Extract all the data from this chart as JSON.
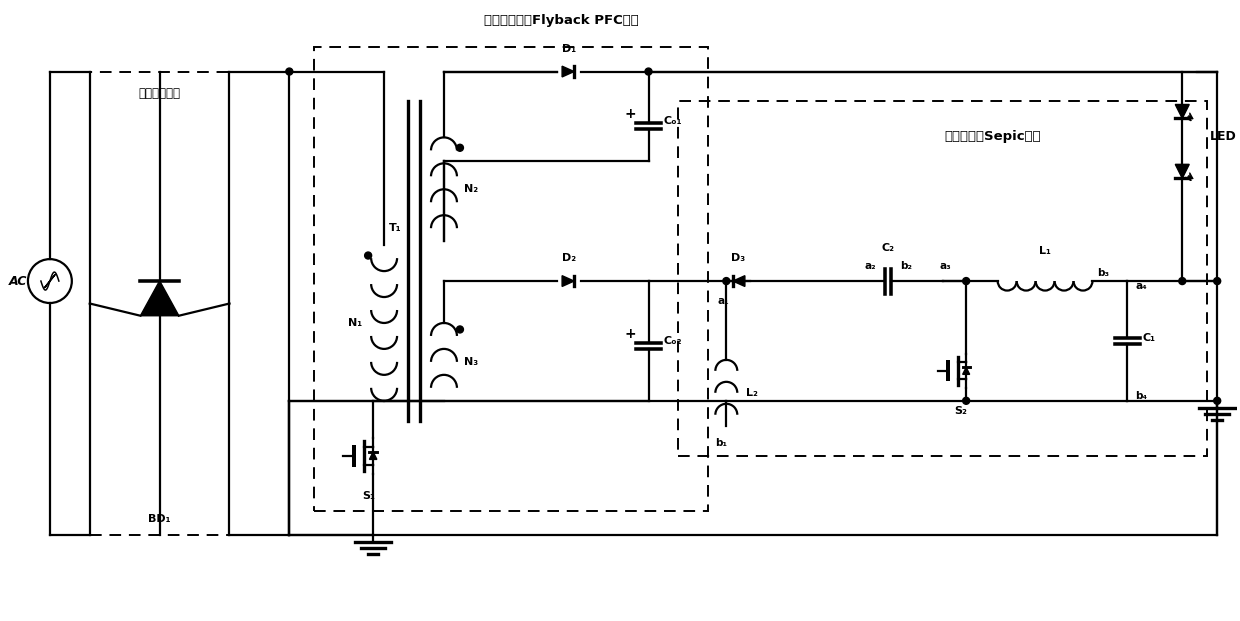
{
  "title_flyback": "带辅助绕组的Flyback PFC电路",
  "title_sepic": "辅助去纹波Sepic电路",
  "title_rectifier": "不控整流电路",
  "label_AC": "AC",
  "label_BD1": "BD₁",
  "label_T1": "T₁",
  "label_N1": "N₁",
  "label_N2": "N₂",
  "label_N3": "N₃",
  "label_D1": "D₁",
  "label_D2": "D₂",
  "label_D3": "D₃",
  "label_CO1": "Cₒ₁",
  "label_CO2": "Cₒ₂",
  "label_S1": "S₁",
  "label_S2": "S₂",
  "label_L1": "L₁",
  "label_L2": "L₂",
  "label_C1": "C₁",
  "label_C2": "C₂",
  "label_LED": "LED",
  "label_a1": "a₁",
  "label_a2": "a₂",
  "label_a3": "a₃",
  "label_a4": "a₄",
  "label_b1": "b₁",
  "label_b2": "b₂",
  "label_b3": "b₃",
  "label_b4": "b₄",
  "bg_color": "#ffffff",
  "line_color": "#000000",
  "lw": 1.6
}
